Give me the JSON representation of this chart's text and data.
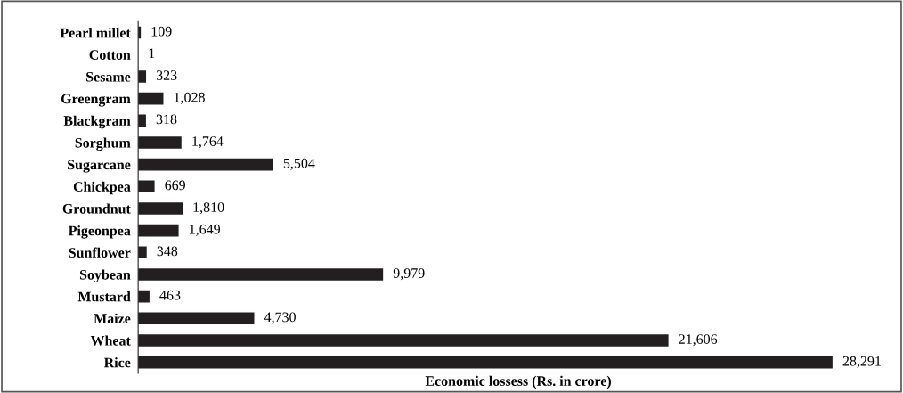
{
  "chart_data": {
    "type": "bar",
    "orientation": "horizontal",
    "xlabel": "Economic lossess (Rs. in crore)",
    "categories": [
      "Pearl millet",
      "Cotton",
      "Sesame",
      "Greengram",
      "Blackgram",
      "Sorghum",
      "Sugarcane",
      "Chickpea",
      "Groundnut",
      "Pigeonpea",
      "Sunflower",
      "Soybean",
      "Mustard",
      "Maize",
      "Wheat",
      "Rice"
    ],
    "values": [
      109,
      1,
      323,
      1028,
      318,
      1764,
      5504,
      669,
      1810,
      1649,
      348,
      9979,
      463,
      4730,
      21606,
      28291
    ],
    "value_labels": [
      "109",
      "1",
      "323",
      "1,028",
      "318",
      "1,764",
      "5,504",
      "669",
      "1,810",
      "1,649",
      "348",
      "9,979",
      "463",
      "4,730",
      "21,606",
      "28,291"
    ],
    "color": "#231f20",
    "grid": false,
    "legend": false
  }
}
